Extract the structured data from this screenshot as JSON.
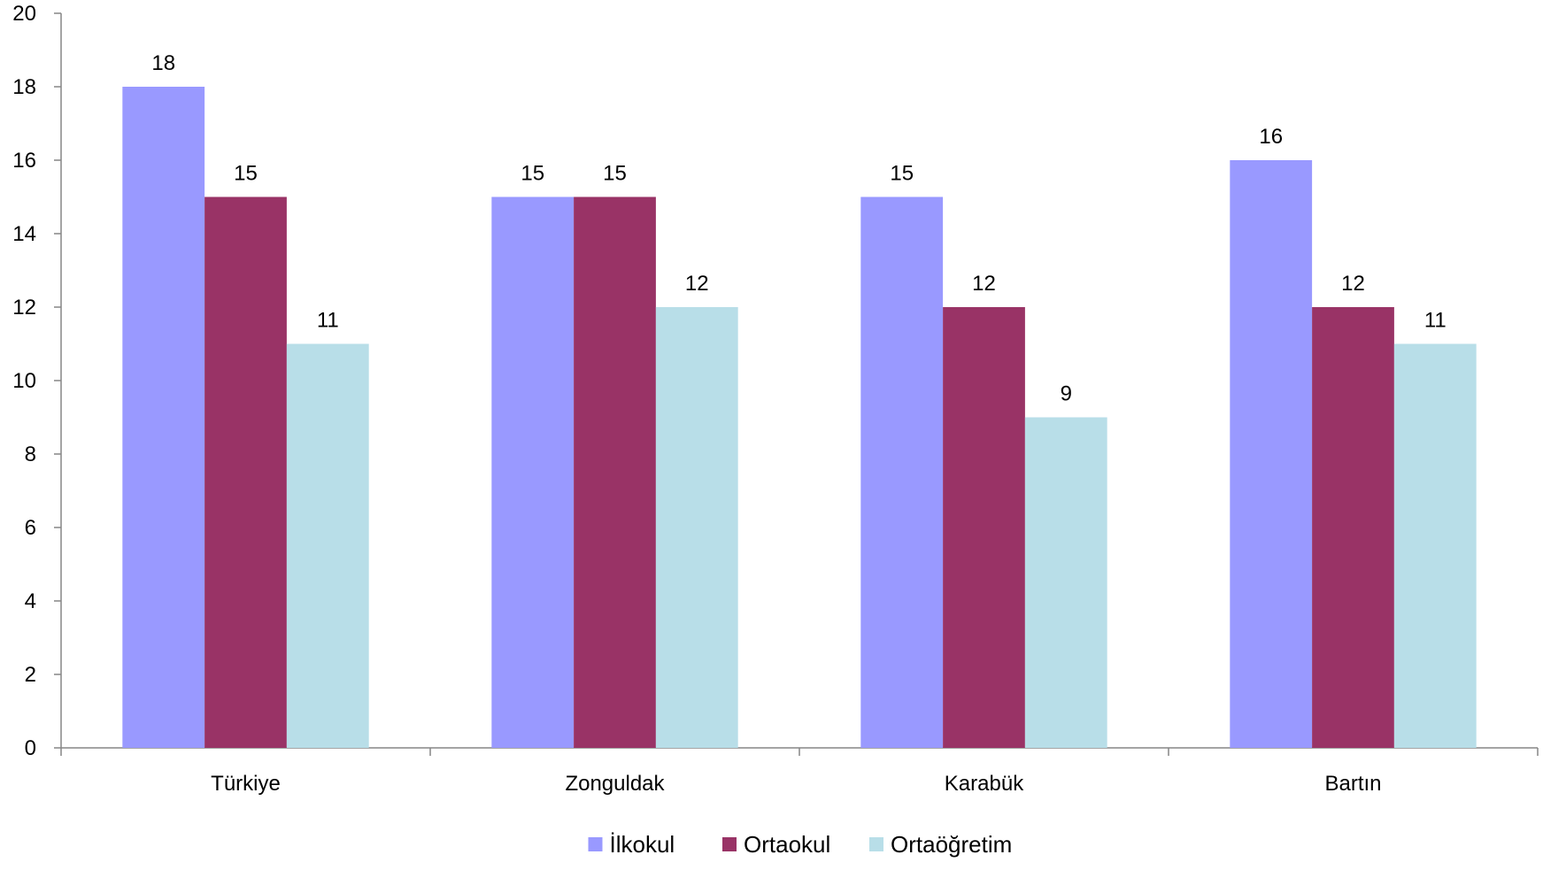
{
  "chart_data": {
    "type": "bar",
    "title": "",
    "xlabel": "",
    "ylabel": "",
    "categories": [
      "Türkiye",
      "Zonguldak",
      "Karabük",
      "Bartın"
    ],
    "series": [
      {
        "name": "İlkokul",
        "values": [
          18,
          15,
          15,
          16
        ],
        "color": "#9999FF"
      },
      {
        "name": "Ortaokul",
        "values": [
          15,
          15,
          12,
          12
        ],
        "color": "#993366"
      },
      {
        "name": "Ortaöğretim",
        "values": [
          11,
          12,
          9,
          11
        ],
        "color": "#B8DEE8"
      }
    ],
    "ylim": [
      0,
      20
    ],
    "yticks": [
      0,
      2,
      4,
      6,
      8,
      10,
      12,
      14,
      16,
      18,
      20
    ],
    "grid": false,
    "legend_position": "bottom",
    "data_labels": true
  }
}
